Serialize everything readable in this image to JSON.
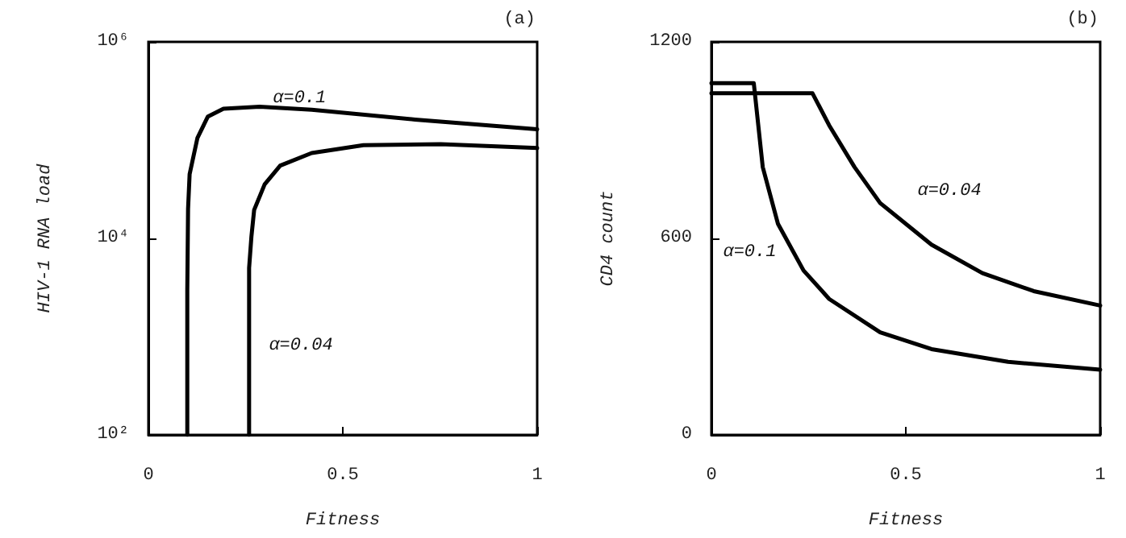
{
  "chart_data": [
    {
      "type": "line",
      "title": "(a)",
      "xlabel": "Fitness",
      "ylabel": "HIV-1 RNA load",
      "log": "y",
      "grid": false,
      "xlim": [
        0,
        1
      ],
      "ylim": [
        100,
        1000000
      ],
      "xticks": [
        0,
        0.5,
        1
      ],
      "yticks": [
        {
          "value": 100,
          "label": "10²"
        },
        {
          "value": 10000,
          "label": "10⁴"
        },
        {
          "value": 1000000,
          "label": "10⁶"
        }
      ],
      "series": [
        {
          "name": "α=0.1",
          "color": "#000000",
          "x": [
            0.1,
            0.1,
            0.102,
            0.106,
            0.126,
            0.153,
            0.193,
            0.286,
            0.42,
            0.686,
            1.0
          ],
          "values": [
            100,
            3000,
            20000,
            45000,
            105000,
            174000,
            209000,
            219000,
            204000,
            162000,
            129000
          ]
        },
        {
          "name": "α=0.04",
          "color": "#000000",
          "x": [
            0.259,
            0.259,
            0.265,
            0.272,
            0.299,
            0.339,
            0.42,
            0.553,
            0.752,
            1.0
          ],
          "values": [
            100,
            5000,
            10500,
            19500,
            35500,
            55000,
            74000,
            89000,
            91000,
            83000
          ]
        }
      ]
    },
    {
      "type": "line",
      "title": "(b)",
      "xlabel": "Fitness",
      "ylabel": "CD4 count",
      "grid": false,
      "xlim": [
        0,
        1
      ],
      "ylim": [
        0,
        1200
      ],
      "xticks": [
        0,
        0.5,
        1
      ],
      "yticks": [
        0,
        600,
        1200
      ],
      "series": [
        {
          "name": "α=0.1",
          "color": "#000000",
          "x": [
            0,
            0.109,
            0.132,
            0.171,
            0.237,
            0.303,
            0.434,
            0.566,
            0.763,
            1.0
          ],
          "values": [
            1074,
            1074,
            818,
            645,
            502,
            415,
            313,
            262,
            223,
            199
          ]
        },
        {
          "name": "α=0.04",
          "color": "#000000",
          "x": [
            0,
            0.26,
            0.303,
            0.368,
            0.434,
            0.566,
            0.697,
            0.829,
            1.0
          ],
          "values": [
            1043,
            1043,
            945,
            818,
            708,
            581,
            494,
            439,
            395
          ]
        }
      ]
    }
  ]
}
